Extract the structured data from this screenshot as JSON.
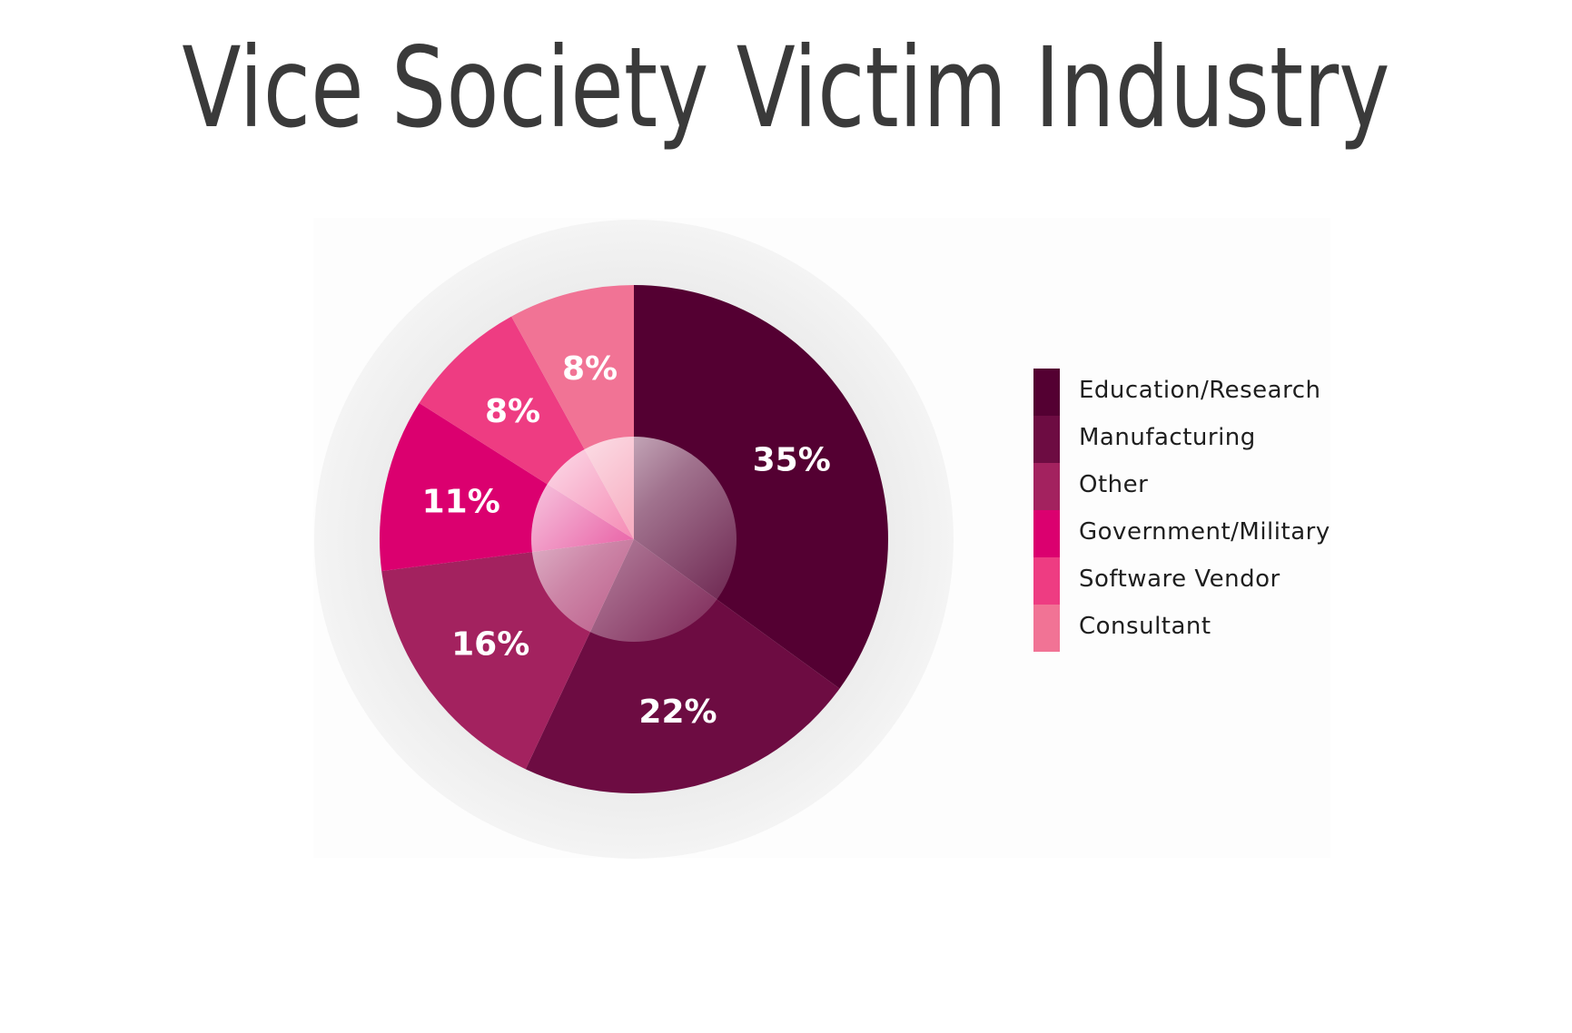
{
  "title": "Vice Society Victim Industry",
  "chart_data": {
    "type": "pie",
    "title": "Vice Society Victim Industry",
    "legend_position": "right",
    "slices": [
      {
        "label": "Education/Research",
        "value": 35,
        "display": "35%",
        "color": "#540032"
      },
      {
        "label": "Manufacturing",
        "value": 22,
        "display": "22%",
        "color": "#6d0c42"
      },
      {
        "label": "Other",
        "value": 16,
        "display": "16%",
        "color": "#a3225f"
      },
      {
        "label": "Government/Military",
        "value": 11,
        "display": "11%",
        "color": "#db006f"
      },
      {
        "label": "Software Vendor",
        "value": 8,
        "display": "8%",
        "color": "#ee3c82"
      },
      {
        "label": "Consultant",
        "value": 8,
        "display": "8%",
        "color": "#f17395"
      }
    ]
  }
}
